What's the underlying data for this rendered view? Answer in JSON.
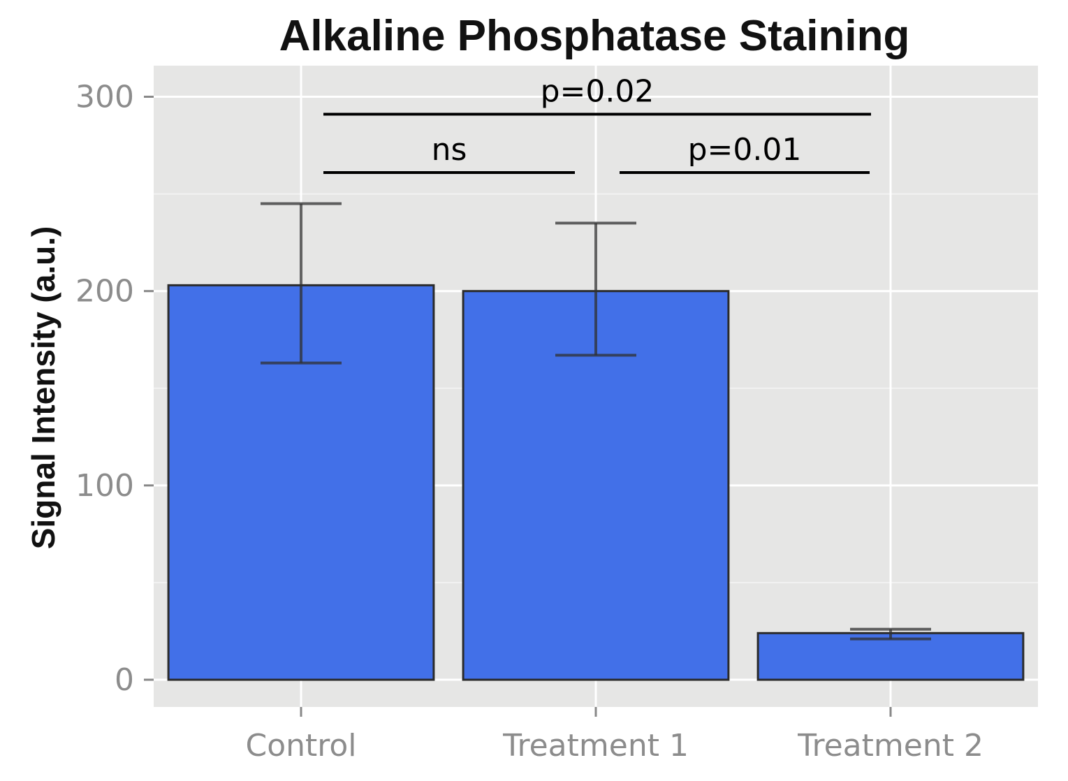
{
  "chart_data": {
    "type": "bar",
    "title": "Alkaline Phosphatase Staining",
    "xlabel": "",
    "ylabel": "Signal Intensity (a.u.)",
    "ylim": [
      -14,
      316
    ],
    "yticks": [
      0,
      100,
      200,
      300
    ],
    "grid": true,
    "categories": [
      "Control",
      "Treatment 1",
      "Treatment 2"
    ],
    "values": [
      203,
      200,
      24
    ],
    "error_lower": [
      163,
      167,
      21
    ],
    "error_upper": [
      245,
      235,
      26
    ],
    "bar_color": "#4270e8",
    "panel_color": "#e6e6e5",
    "comparisons": [
      {
        "from": "Control",
        "to": "Treatment 2",
        "label": "p=0.02",
        "y": 291
      },
      {
        "from": "Control",
        "to": "Treatment 1",
        "label": "ns",
        "y": 261
      },
      {
        "from": "Treatment 1",
        "to": "Treatment 2",
        "label": "p=0.01",
        "y": 261
      }
    ]
  }
}
